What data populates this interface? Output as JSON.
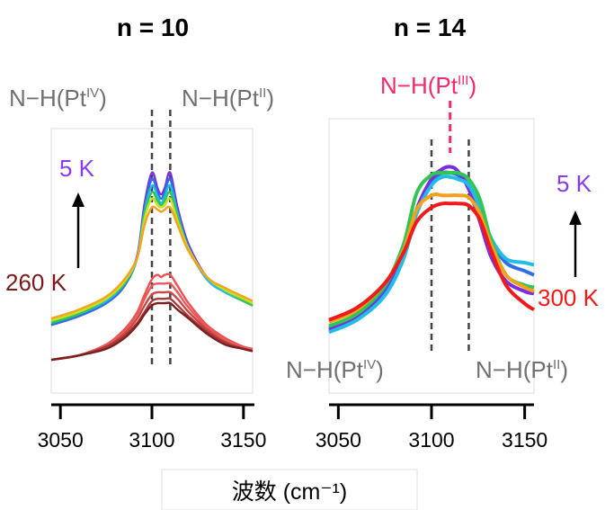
{
  "figure": {
    "xlabel": "波数 (cm⁻¹)"
  },
  "chart_data": [
    {
      "type": "line",
      "title": "n = 10",
      "xlabel": "波数 (cm⁻¹)",
      "ylabel": "",
      "xlim": [
        3045,
        3155
      ],
      "xticks": [
        3050,
        3100,
        3150
      ],
      "ylim": [
        0,
        1
      ],
      "y_axis_shown": false,
      "grid": false,
      "peak_lines_x": [
        3100,
        3110
      ],
      "annotations": [
        {
          "text": "N−H(Pt",
          "sup": "IV",
          "close": ")",
          "color": "#707070",
          "near_x": 3100
        },
        {
          "text": "N−H(Pt",
          "sup": "II",
          "close": ")",
          "color": "#707070",
          "near_x": 3110
        }
      ],
      "temperature_labels": [
        {
          "text": "5 K",
          "color": "#8a3bf0"
        },
        {
          "text": "260 K",
          "color": "#7a1a1a"
        }
      ],
      "x": [
        3045,
        3060,
        3075,
        3085,
        3092,
        3096,
        3100,
        3103,
        3105,
        3107,
        3110,
        3114,
        3120,
        3130,
        3140,
        3150,
        3155
      ],
      "series": [
        {
          "color": "#7a2ee0",
          "values": [
            0.16,
            0.2,
            0.26,
            0.34,
            0.48,
            0.72,
            0.86,
            0.79,
            0.76,
            0.79,
            0.86,
            0.7,
            0.53,
            0.38,
            0.32,
            0.27,
            0.25
          ]
        },
        {
          "color": "#2f6fe6",
          "values": [
            0.16,
            0.2,
            0.26,
            0.34,
            0.47,
            0.7,
            0.83,
            0.77,
            0.74,
            0.77,
            0.83,
            0.68,
            0.52,
            0.37,
            0.31,
            0.27,
            0.25
          ]
        },
        {
          "color": "#22bde6",
          "values": [
            0.17,
            0.21,
            0.27,
            0.35,
            0.47,
            0.68,
            0.8,
            0.75,
            0.72,
            0.75,
            0.8,
            0.67,
            0.51,
            0.37,
            0.31,
            0.27,
            0.25
          ]
        },
        {
          "color": "#31c552",
          "values": [
            0.17,
            0.21,
            0.28,
            0.35,
            0.47,
            0.67,
            0.77,
            0.73,
            0.71,
            0.73,
            0.77,
            0.66,
            0.51,
            0.38,
            0.32,
            0.27,
            0.25
          ]
        },
        {
          "color": "#c6e020",
          "values": [
            0.18,
            0.22,
            0.28,
            0.36,
            0.47,
            0.65,
            0.74,
            0.71,
            0.7,
            0.71,
            0.74,
            0.64,
            0.51,
            0.38,
            0.32,
            0.28,
            0.26
          ]
        },
        {
          "color": "#f3a21d",
          "values": [
            0.19,
            0.23,
            0.29,
            0.37,
            0.47,
            0.62,
            0.7,
            0.69,
            0.68,
            0.69,
            0.7,
            0.62,
            0.5,
            0.38,
            0.33,
            0.29,
            0.27
          ]
        },
        {
          "color": "#f05050",
          "values": [
            0.0,
            0.02,
            0.07,
            0.14,
            0.22,
            0.3,
            0.37,
            0.39,
            0.38,
            0.39,
            0.39,
            0.34,
            0.26,
            0.16,
            0.1,
            0.06,
            0.05
          ]
        },
        {
          "color": "#e85a5a",
          "values": [
            0.0,
            0.02,
            0.07,
            0.13,
            0.21,
            0.28,
            0.34,
            0.35,
            0.35,
            0.35,
            0.35,
            0.31,
            0.24,
            0.15,
            0.09,
            0.06,
            0.05
          ]
        },
        {
          "color": "#cc4444",
          "values": [
            0.0,
            0.02,
            0.06,
            0.12,
            0.19,
            0.25,
            0.3,
            0.31,
            0.31,
            0.31,
            0.31,
            0.28,
            0.22,
            0.14,
            0.08,
            0.05,
            0.04
          ]
        },
        {
          "color": "#a53a3a",
          "values": [
            0.0,
            0.02,
            0.06,
            0.11,
            0.17,
            0.22,
            0.27,
            0.28,
            0.28,
            0.28,
            0.28,
            0.25,
            0.2,
            0.13,
            0.08,
            0.05,
            0.04
          ]
        },
        {
          "color": "#7a1f1f",
          "values": [
            0.0,
            0.02,
            0.05,
            0.1,
            0.16,
            0.21,
            0.25,
            0.26,
            0.26,
            0.26,
            0.26,
            0.23,
            0.19,
            0.12,
            0.07,
            0.05,
            0.04
          ]
        }
      ]
    },
    {
      "type": "line",
      "title": "n = 14",
      "xlabel": "波数 (cm⁻¹)",
      "ylabel": "",
      "xlim": [
        3045,
        3155
      ],
      "xticks": [
        3050,
        3100,
        3150
      ],
      "ylim": [
        0,
        1
      ],
      "y_axis_shown": false,
      "grid": false,
      "peak_lines_x": [
        3100,
        3120
      ],
      "highlight_line_x": 3110,
      "annotations": [
        {
          "text": "N−H(Pt",
          "sup": "III",
          "close": ")",
          "color": "#f02a6e",
          "near_x": 3110
        },
        {
          "text": "N−H(Pt",
          "sup": "IV",
          "close": ")",
          "color": "#707070",
          "near_x": 3100
        },
        {
          "text": "N−H(Pt",
          "sup": "II",
          "close": ")",
          "color": "#707070",
          "near_x": 3120
        }
      ],
      "temperature_labels": [
        {
          "text": "5 K",
          "color": "#8a3bf0"
        },
        {
          "text": "300 K",
          "color": "#f01a1a"
        }
      ],
      "x": [
        3045,
        3060,
        3075,
        3085,
        3092,
        3100,
        3106,
        3110,
        3114,
        3120,
        3126,
        3132,
        3140,
        3150,
        3155
      ],
      "series": [
        {
          "color": "#2f6fe6",
          "values": [
            0.12,
            0.18,
            0.3,
            0.48,
            0.7,
            0.84,
            0.88,
            0.88,
            0.87,
            0.82,
            0.7,
            0.55,
            0.44,
            0.4,
            0.38
          ]
        },
        {
          "color": "#7a2ee0",
          "values": [
            0.11,
            0.17,
            0.29,
            0.47,
            0.7,
            0.85,
            0.9,
            0.91,
            0.89,
            0.8,
            0.64,
            0.47,
            0.35,
            0.3,
            0.29
          ]
        },
        {
          "color": "#22bde6",
          "values": [
            0.1,
            0.16,
            0.28,
            0.46,
            0.68,
            0.82,
            0.86,
            0.86,
            0.85,
            0.82,
            0.71,
            0.56,
            0.46,
            0.44,
            0.43
          ]
        },
        {
          "color": "#31c552",
          "values": [
            0.13,
            0.19,
            0.33,
            0.53,
            0.78,
            0.87,
            0.88,
            0.88,
            0.88,
            0.85,
            0.75,
            0.55,
            0.38,
            0.33,
            0.32
          ]
        },
        {
          "color": "#f3a21d",
          "values": [
            0.15,
            0.21,
            0.34,
            0.5,
            0.7,
            0.77,
            0.77,
            0.77,
            0.77,
            0.76,
            0.68,
            0.53,
            0.38,
            0.32,
            0.3
          ]
        },
        {
          "color": "#f01a1a",
          "values": [
            0.16,
            0.22,
            0.34,
            0.49,
            0.64,
            0.71,
            0.73,
            0.73,
            0.73,
            0.72,
            0.65,
            0.5,
            0.33,
            0.24,
            0.21
          ]
        }
      ]
    }
  ]
}
